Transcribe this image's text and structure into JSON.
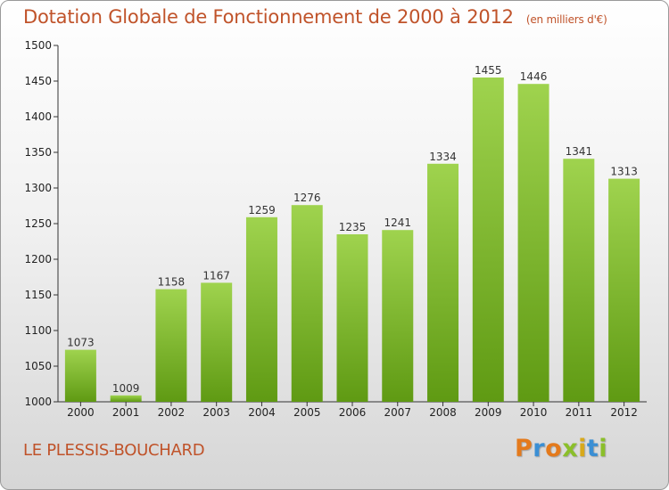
{
  "header": {
    "title": "Dotation Globale de Fonctionnement de 2000 à 2012",
    "subtitle": "(en milliers d'€)"
  },
  "footer": {
    "commune": "LE PLESSIS-BOUCHARD",
    "brand": "Proxiti"
  },
  "colors": {
    "title": "#c0532a",
    "bar_top": "#9fd34e",
    "bar_bottom": "#5f9a13",
    "brand_letters": [
      "#e47a1c",
      "#3b8fd4",
      "#e47a1c",
      "#8bbf2a",
      "#d8a91b",
      "#3b8fd4",
      "#8bbf2a"
    ]
  },
  "chart_data": {
    "type": "bar",
    "title": "Dotation Globale de Fonctionnement de 2000 à 2012",
    "categories": [
      "2000",
      "2001",
      "2002",
      "2003",
      "2004",
      "2005",
      "2006",
      "2007",
      "2008",
      "2009",
      "2010",
      "2011",
      "2012"
    ],
    "values": [
      1073,
      1009,
      1158,
      1167,
      1259,
      1276,
      1235,
      1241,
      1334,
      1455,
      1446,
      1341,
      1313
    ],
    "ylim": [
      1000,
      1500
    ],
    "yticks": [
      1000,
      1050,
      1100,
      1150,
      1200,
      1250,
      1300,
      1350,
      1400,
      1450,
      1500
    ],
    "grid": false,
    "data_labels": true
  }
}
